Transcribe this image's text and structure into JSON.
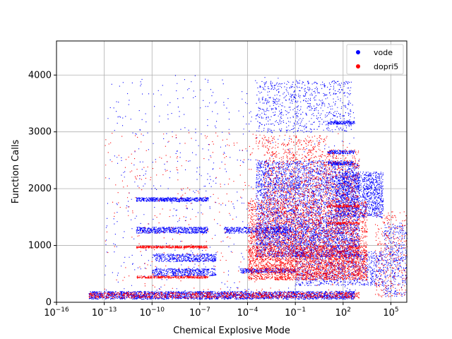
{
  "chart_data": {
    "type": "scatter",
    "title": "",
    "xlabel": "Chemical Explosive Mode",
    "ylabel": "Function Calls",
    "xscale": "log",
    "xlim": [
      1e-16,
      1000000.0
    ],
    "ylim": [
      0,
      4600
    ],
    "x_tick_exponents": [
      -16,
      -13,
      -10,
      -7,
      -4,
      -1,
      2,
      5
    ],
    "x_tick_base": "10",
    "y_ticks": [
      0,
      1000,
      2000,
      3000,
      4000
    ],
    "grid": true,
    "legend_position": "top-right",
    "series": [
      {
        "name": "vode",
        "color": "#0000ff",
        "clusters": [
          {
            "x_log": [
              -14,
              2.7
            ],
            "y": [
              60,
              200
            ],
            "n": 2400
          },
          {
            "x_log": [
              -11,
              -6.5
            ],
            "y": [
              1780,
              1850
            ],
            "n": 500
          },
          {
            "x_log": [
              -11,
              -6.5
            ],
            "y": [
              1220,
              1330
            ],
            "n": 550
          },
          {
            "x_log": [
              -10,
              -6
            ],
            "y": [
              720,
              860
            ],
            "n": 450
          },
          {
            "x_log": [
              -10,
              -6
            ],
            "y": [
              470,
              600
            ],
            "n": 450
          },
          {
            "x_log": [
              -5.5,
              -1.5
            ],
            "y": [
              1220,
              1330
            ],
            "n": 400
          },
          {
            "x_log": [
              -4.5,
              -1
            ],
            "y": [
              520,
              600
            ],
            "n": 300
          },
          {
            "x_log": [
              -3.5,
              3
            ],
            "y": [
              1400,
              2500
            ],
            "n": 2600
          },
          {
            "x_log": [
              -3.5,
              3
            ],
            "y": [
              800,
              1400
            ],
            "n": 2200
          },
          {
            "x_log": [
              -3.5,
              2.5
            ],
            "y": [
              3000,
              3900
            ],
            "n": 700
          },
          {
            "x_log": [
              1.5,
              4.5
            ],
            "y": [
              1500,
              2300
            ],
            "n": 1300
          },
          {
            "x_log": [
              -1,
              4.5
            ],
            "y": [
              300,
              900
            ],
            "n": 1000
          },
          {
            "x_log": [
              1,
              2.7
            ],
            "y": [
              3140,
              3200
            ],
            "n": 150
          },
          {
            "x_log": [
              1,
              2.7
            ],
            "y": [
              2620,
              2680
            ],
            "n": 150
          },
          {
            "x_log": [
              1,
              2.7
            ],
            "y": [
              2420,
              2480
            ],
            "n": 150
          },
          {
            "x_log": [
              -13,
              3
            ],
            "y": [
              100,
              4000
            ],
            "n": 700
          },
          {
            "x_log": [
              4.5,
              6
            ],
            "y": [
              100,
              1400
            ],
            "n": 400
          }
        ]
      },
      {
        "name": "dopri5",
        "color": "#ff0000",
        "clusters": [
          {
            "x_log": [
              -14,
              3
            ],
            "y": [
              80,
              180
            ],
            "n": 1000
          },
          {
            "x_log": [
              -11,
              -6.5
            ],
            "y": [
              960,
              1000
            ],
            "n": 400
          },
          {
            "x_log": [
              -11,
              -6.5
            ],
            "y": [
              430,
              470
            ],
            "n": 300
          },
          {
            "x_log": [
              -4,
              3.5
            ],
            "y": [
              400,
              1000
            ],
            "n": 2800
          },
          {
            "x_log": [
              -4,
              3.5
            ],
            "y": [
              1000,
              1800
            ],
            "n": 1800
          },
          {
            "x_log": [
              -3,
              3
            ],
            "y": [
              1800,
              2700
            ],
            "n": 900
          },
          {
            "x_log": [
              1,
              3
            ],
            "y": [
              1680,
              1720
            ],
            "n": 120
          },
          {
            "x_log": [
              1,
              3
            ],
            "y": [
              1380,
              1420
            ],
            "n": 120
          },
          {
            "x_log": [
              -3.5,
              1
            ],
            "y": [
              2700,
              2950
            ],
            "n": 150
          },
          {
            "x_log": [
              -13,
              3
            ],
            "y": [
              200,
              3000
            ],
            "n": 500
          },
          {
            "x_log": [
              4,
              6
            ],
            "y": [
              100,
              1600
            ],
            "n": 300
          }
        ]
      }
    ]
  }
}
